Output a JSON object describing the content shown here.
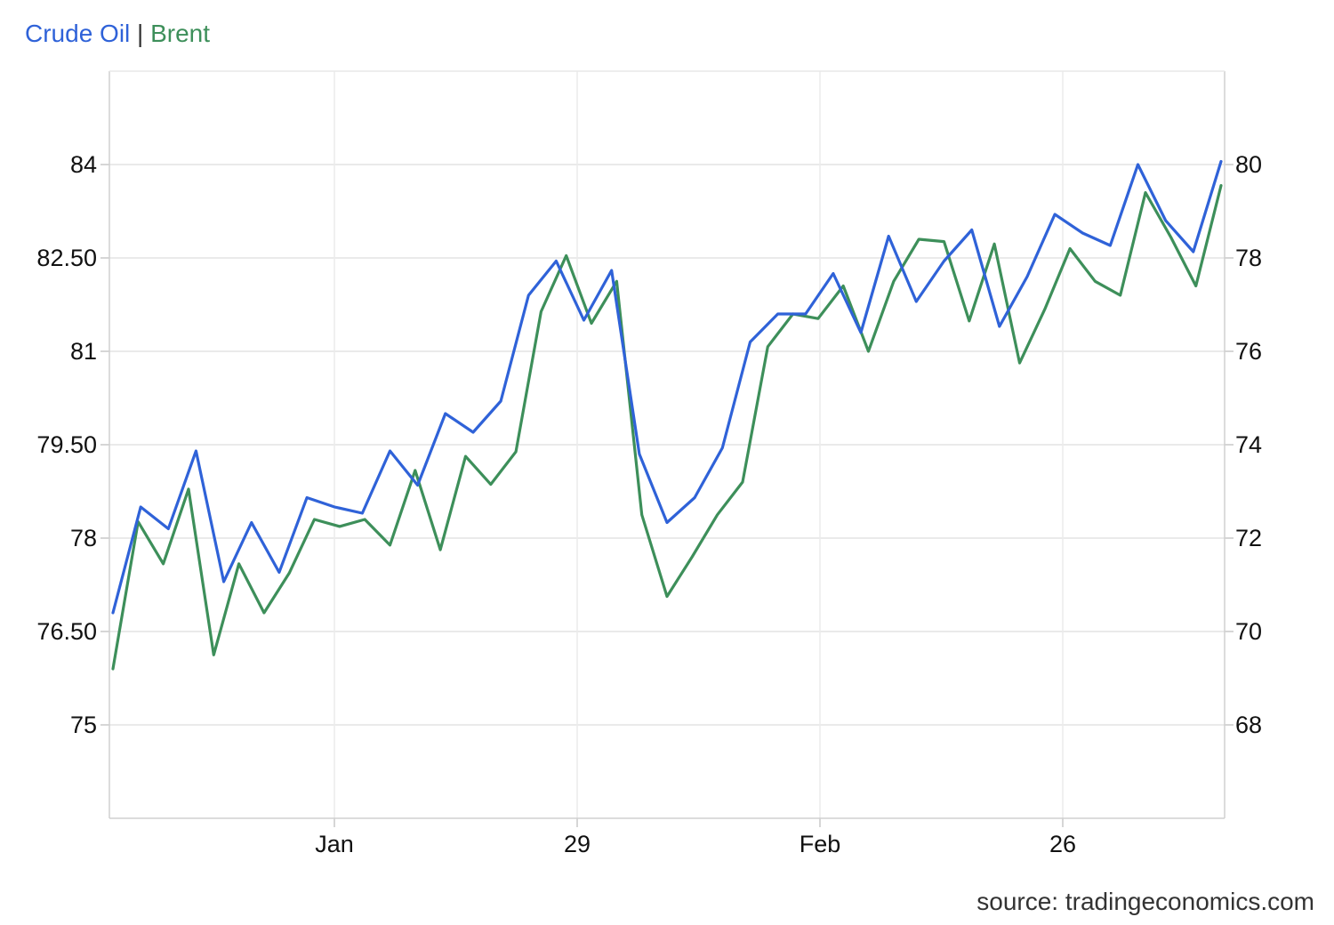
{
  "legend": {
    "series1": "Crude Oil",
    "separator": "|",
    "series2": "Brent",
    "series1_color": "#2f62d8",
    "series2_color": "#3d8f5a"
  },
  "source": "source: tradingeconomics.com",
  "chart_data": {
    "type": "line",
    "grid": true,
    "x_ticks": [
      "Jan",
      "29",
      "Feb",
      "26"
    ],
    "left_axis": {
      "ticks": [
        "75",
        "76.50",
        "78",
        "79.50",
        "81",
        "82.50",
        "84"
      ],
      "range": [
        73.5,
        85.5
      ]
    },
    "right_axis": {
      "ticks": [
        "68",
        "70",
        "72",
        "74",
        "76",
        "78",
        "80"
      ],
      "range": [
        66,
        82
      ]
    },
    "series": [
      {
        "name": "Crude Oil",
        "axis": "left",
        "color": "#2f62d8",
        "values": [
          76.8,
          78.5,
          78.15,
          79.4,
          77.3,
          78.25,
          77.45,
          78.65,
          78.5,
          78.4,
          79.4,
          78.85,
          80.0,
          79.7,
          80.2,
          81.9,
          82.45,
          81.5,
          82.3,
          79.35,
          78.25,
          78.65,
          79.45,
          81.15,
          81.6,
          81.6,
          82.25,
          81.3,
          82.85,
          81.8,
          82.45,
          82.95,
          81.4,
          82.2,
          83.2,
          82.9,
          82.7,
          84.0,
          83.1,
          82.6,
          84.05
        ]
      },
      {
        "name": "Brent",
        "axis": "right",
        "color": "#3d8f5a",
        "values": [
          69.2,
          72.35,
          71.45,
          73.05,
          69.5,
          71.45,
          70.4,
          71.25,
          72.4,
          72.25,
          72.4,
          71.85,
          73.45,
          71.75,
          73.75,
          73.15,
          73.85,
          76.85,
          78.05,
          76.6,
          77.5,
          72.5,
          70.75,
          71.6,
          72.5,
          73.2,
          76.1,
          76.8,
          76.7,
          77.4,
          76.0,
          77.5,
          78.4,
          78.35,
          76.65,
          78.3,
          75.75,
          76.9,
          78.2,
          77.5,
          77.2,
          79.4,
          78.45,
          77.4,
          79.55
        ]
      }
    ]
  }
}
